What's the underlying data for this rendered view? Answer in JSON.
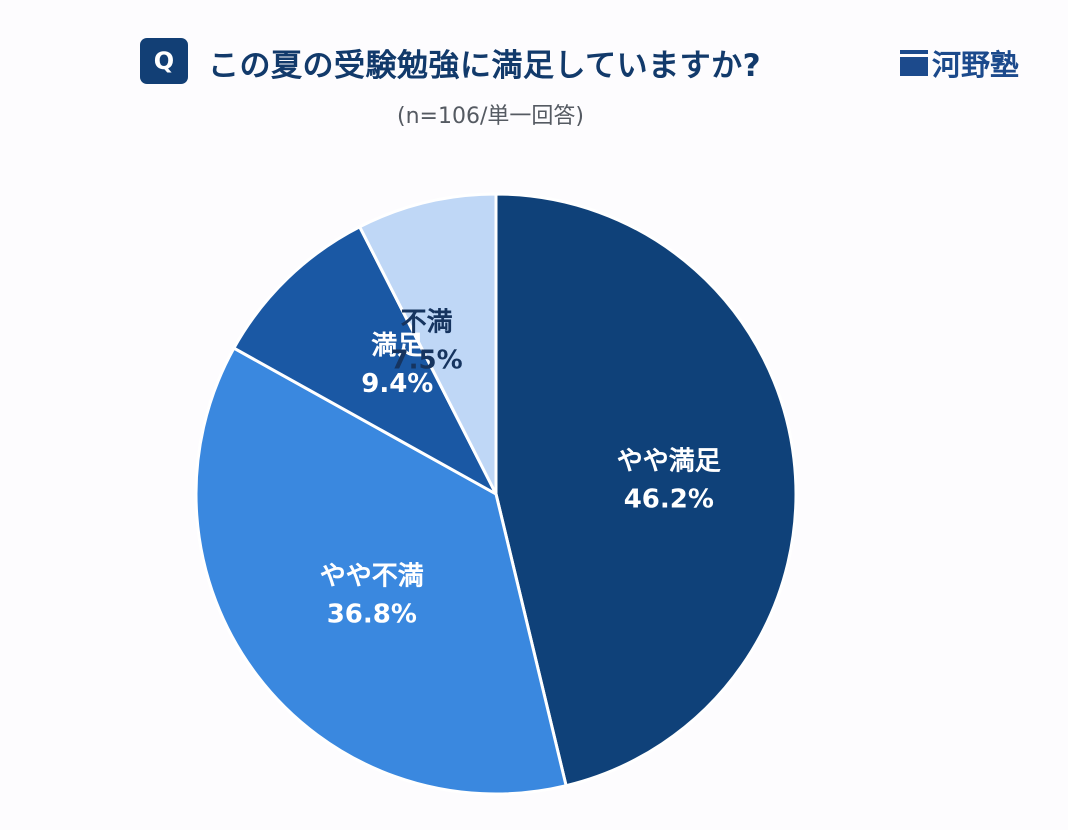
{
  "header": {
    "badge": "Q",
    "title": "この夏の受験勉強に満足していますか?",
    "subtitle": "(n=106/単一回答)",
    "logo_text": "河野塾"
  },
  "colors": {
    "brand": "#1c4a8c",
    "badge": "#123f75",
    "title": "#123a6b"
  },
  "chart_data": {
    "type": "pie",
    "start_angle": "12 o'clock",
    "direction": "clockwise",
    "slices": [
      {
        "label": "やや満足",
        "value": 46.2,
        "value_label": "46.2%",
        "color": "#0f4179",
        "text_color": "#ffffff"
      },
      {
        "label": "やや不満",
        "value": 36.8,
        "value_label": "36.8%",
        "color": "#3a88df",
        "text_color": "#ffffff"
      },
      {
        "label": "満足",
        "value": 9.4,
        "value_label": "9.4%",
        "color": "#1a58a4",
        "text_color": "#ffffff"
      },
      {
        "label": "不満",
        "value": 7.5,
        "value_label": "7.5%",
        "color": "#bfd7f6",
        "text_color": "#16345f"
      }
    ]
  }
}
